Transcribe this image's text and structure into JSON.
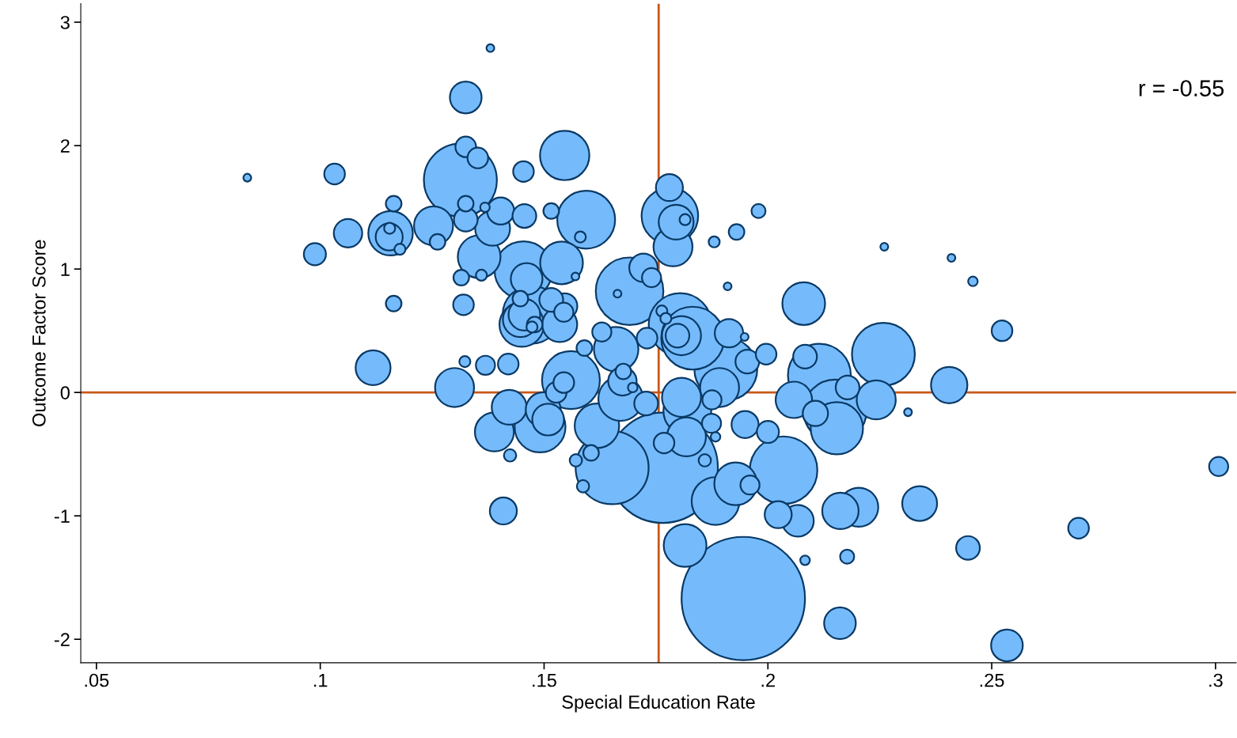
{
  "chart_data": {
    "type": "bubble",
    "xlabel": "Special Education Rate",
    "ylabel": "Outcome Factor Score",
    "annotations": [
      "r = -0.55"
    ],
    "xlim": [
      0.0465,
      0.3046
    ],
    "ylim": [
      -2.19,
      3.15
    ],
    "xticks": [
      {
        "value": 0.05,
        "label": ".05"
      },
      {
        "value": 0.1,
        "label": ".1"
      },
      {
        "value": 0.15,
        "label": ".15"
      },
      {
        "value": 0.2,
        "label": ".2"
      },
      {
        "value": 0.25,
        "label": ".25"
      },
      {
        "value": 0.3,
        "label": ".3"
      }
    ],
    "yticks": [
      -2,
      -1,
      0,
      1,
      2,
      3
    ],
    "grid": false,
    "legend": false,
    "ref_lines": [
      {
        "axis": "x",
        "value": 0.1756,
        "color": "#c8581a"
      },
      {
        "axis": "y",
        "value": 0,
        "color": "#c8581a"
      }
    ],
    "series": [
      {
        "color": "#75bbfc",
        "x": [
          0.0837,
          0.138,
          0.1325,
          0.1546,
          0.1313,
          0.1325,
          0.1352,
          0.1032,
          0.1454,
          0.178,
          0.1781,
          0.1795,
          0.1815,
          0.1788,
          0.1979,
          0.193,
          0.188,
          0.191,
          0.226,
          0.241,
          0.2458,
          0.2523,
          0.208,
          0.2258,
          0.2405,
          0.2115,
          0.215,
          0.2154,
          0.2242,
          0.2178,
          0.2083,
          0.2058,
          0.2106,
          0.2313,
          0.3007,
          0.2694,
          0.2447,
          0.2534,
          0.2339,
          0.2203,
          0.2162,
          0.2177,
          0.2083,
          0.2161,
          0.2067,
          0.2023,
          0.2035,
          0.1949,
          0.2,
          0.1996,
          0.1954,
          0.1948,
          0.1913,
          0.1906,
          0.1892,
          0.1875,
          0.1883,
          0.1883,
          0.1928,
          0.196,
          0.1945,
          0.1765,
          0.1652,
          0.1815,
          0.1818,
          0.182,
          0.1807,
          0.1874,
          0.1859,
          0.1768,
          0.1804,
          0.1832,
          0.1807,
          0.1798,
          0.1763,
          0.1772,
          0.173,
          0.1691,
          0.1722,
          0.174,
          0.1664,
          0.1594,
          0.1581,
          0.157,
          0.1539,
          0.1516,
          0.1456,
          0.1454,
          0.1461,
          0.1355,
          0.136,
          0.1385,
          0.1403,
          0.1325,
          0.1325,
          0.1368,
          0.1253,
          0.1262,
          0.1157,
          0.1154,
          0.1155,
          0.1178,
          0.1164,
          0.1062,
          0.0988,
          0.1164,
          0.1315,
          0.132,
          0.1118,
          0.13,
          0.1323,
          0.1369,
          0.142,
          0.1389,
          0.1422,
          0.1491,
          0.1498,
          0.1509,
          0.1527,
          0.1544,
          0.156,
          0.1424,
          0.1409,
          0.1571,
          0.1605,
          0.1587,
          0.1618,
          0.1671,
          0.1675,
          0.1677,
          0.1698,
          0.1728,
          0.1661,
          0.159,
          0.1629,
          0.1535,
          0.1546,
          0.1544,
          0.1516,
          0.1472,
          0.145,
          0.1447,
          0.1456,
          0.1479,
          0.1447,
          0.1473
        ],
        "values": [
          1.74,
          2.79,
          2.39,
          1.92,
          1.72,
          1.99,
          1.9,
          1.77,
          1.79,
          1.66,
          1.43,
          1.38,
          1.4,
          1.18,
          1.47,
          1.3,
          1.22,
          0.86,
          1.18,
          1.09,
          0.9,
          0.5,
          0.72,
          0.31,
          0.06,
          0.14,
          -0.15,
          -0.29,
          -0.06,
          0.04,
          0.29,
          -0.06,
          -0.17,
          -0.16,
          -0.6,
          -1.1,
          -1.26,
          -2.05,
          -0.9,
          -0.93,
          -0.96,
          -1.33,
          -1.36,
          -1.87,
          -1.04,
          -0.99,
          -0.63,
          -0.26,
          -0.32,
          0.31,
          0.25,
          0.45,
          0.48,
          0.19,
          0.04,
          -0.06,
          -0.36,
          -0.88,
          -0.74,
          -0.75,
          -1.67,
          -0.61,
          -0.61,
          -1.24,
          -0.36,
          -0.15,
          -0.04,
          -0.25,
          -0.55,
          -0.41,
          0.55,
          0.44,
          0.46,
          0.46,
          0.66,
          0.6,
          0.44,
          0.82,
          1.01,
          0.93,
          0.8,
          1.4,
          1.26,
          0.94,
          1.05,
          1.47,
          1.43,
          0.99,
          0.92,
          1.1,
          0.95,
          1.33,
          1.47,
          1.4,
          1.53,
          1.5,
          1.35,
          1.22,
          1.29,
          1.26,
          1.33,
          1.16,
          1.53,
          1.29,
          1.12,
          0.72,
          0.93,
          0.71,
          0.2,
          0.04,
          0.25,
          0.22,
          0.23,
          -0.32,
          -0.12,
          -0.28,
          -0.14,
          -0.22,
          0.0,
          0.08,
          0.1,
          -0.51,
          -0.96,
          -0.55,
          -0.49,
          -0.76,
          -0.27,
          -0.05,
          0.09,
          0.17,
          0.04,
          -0.09,
          0.35,
          0.36,
          0.49,
          0.55,
          0.7,
          0.65,
          0.75,
          0.63,
          0.55,
          0.59,
          0.63,
          0.55,
          0.76,
          0.53
        ],
        "sizes": [
          0.004,
          0.004,
          0.066,
          0.16,
          0.35,
          0.028,
          0.028,
          0.028,
          0.028,
          0.048,
          0.21,
          0.08,
          0.008,
          0.1,
          0.013,
          0.016,
          0.008,
          0.004,
          0.004,
          0.004,
          0.006,
          0.028,
          0.12,
          0.26,
          0.087,
          0.26,
          0.26,
          0.18,
          0.1,
          0.037,
          0.037,
          0.087,
          0.042,
          0.004,
          0.024,
          0.028,
          0.037,
          0.066,
          0.08,
          0.1,
          0.087,
          0.013,
          0.006,
          0.066,
          0.066,
          0.048,
          0.3,
          0.048,
          0.032,
          0.028,
          0.037,
          0.004,
          0.053,
          0.26,
          0.1,
          0.024,
          0.006,
          0.15,
          0.12,
          0.024,
          1,
          0.8,
          0.35,
          0.12,
          0.1,
          0.15,
          0.1,
          0.024,
          0.01,
          0.028,
          0.26,
          0.26,
          0.1,
          0.037,
          0.008,
          0.008,
          0.028,
          0.3,
          0.053,
          0.024,
          0.004,
          0.22,
          0.008,
          0.004,
          0.12,
          0.016,
          0.037,
          0.22,
          0.066,
          0.12,
          0.008,
          0.08,
          0.048,
          0.037,
          0.016,
          0.006,
          0.1,
          0.016,
          0.13,
          0.048,
          0.008,
          0.008,
          0.016,
          0.053,
          0.032,
          0.016,
          0.016,
          0.028,
          0.08,
          0.1,
          0.008,
          0.024,
          0.028,
          0.1,
          0.08,
          0.17,
          0.08,
          0.066,
          0.028,
          0.028,
          0.22,
          0.01,
          0.048,
          0.01,
          0.016,
          0.01,
          0.13,
          0.13,
          0.053,
          0.016,
          0.006,
          0.037,
          0.13,
          0.016,
          0.024,
          0.08,
          0.042,
          0.024,
          0.037,
          0.22,
          0.13,
          0.08,
          0.066,
          0.016,
          0.016,
          0.008
        ]
      }
    ]
  }
}
